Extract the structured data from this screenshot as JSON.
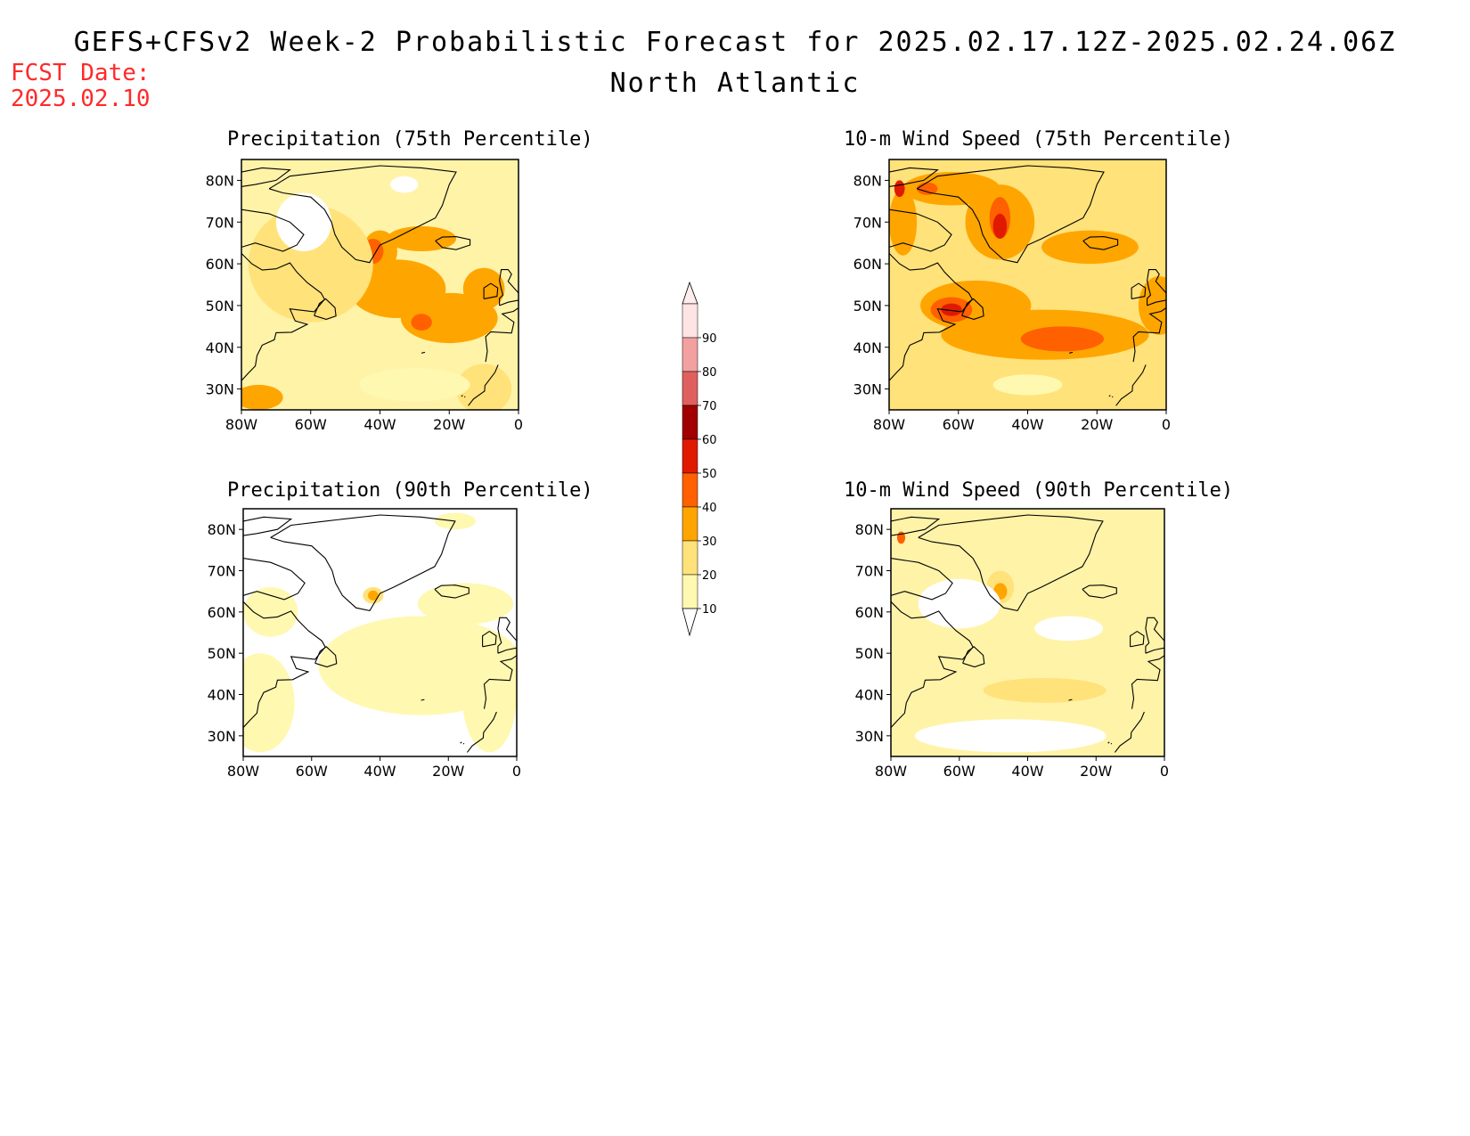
{
  "header": {
    "title": "GEFS+CFSv2 Week-2 Probabilistic Forecast for 2025.02.17.12Z-2025.02.24.06Z",
    "subtitle": "North Atlantic",
    "fcst_label": "FCST Date:",
    "fcst_date": "2025.02.10"
  },
  "axes": {
    "lat_ticks": [
      "80N",
      "70N",
      "60N",
      "50N",
      "40N",
      "30N"
    ],
    "lon_ticks": [
      "80W",
      "60W",
      "40W",
      "20W",
      "0"
    ]
  },
  "colorbar": {
    "labels": [
      "10",
      "20",
      "30",
      "40",
      "50",
      "60",
      "70",
      "80",
      "90"
    ],
    "colors": [
      "#fff8b0",
      "#ffe27a",
      "#ffa500",
      "#ff6000",
      "#e01a00",
      "#a00000",
      "#e06060",
      "#f2a0a0",
      "#ffe4e4"
    ]
  },
  "panels": [
    {
      "title": "Precipitation (75th Percentile)",
      "background": "#fff3a8",
      "blobs": [
        {
          "level": 2,
          "lon": -35,
          "lat": 54,
          "rx": 14,
          "ry": 7
        },
        {
          "level": 2,
          "lon": -20,
          "lat": 47,
          "rx": 14,
          "ry": 6
        },
        {
          "level": 2,
          "lon": -10,
          "lat": 54,
          "rx": 6,
          "ry": 5
        },
        {
          "level": 2,
          "lon": -40,
          "lat": 63,
          "rx": 5,
          "ry": 5
        },
        {
          "level": 2,
          "lon": -28,
          "lat": 66,
          "rx": 10,
          "ry": 3
        },
        {
          "level": 2,
          "lon": -75,
          "lat": 28,
          "rx": 7,
          "ry": 3
        },
        {
          "level": 3,
          "lon": -28,
          "lat": 46,
          "rx": 3,
          "ry": 2
        },
        {
          "level": 3,
          "lon": -42,
          "lat": 63,
          "rx": 3,
          "ry": 3
        },
        {
          "level": 3,
          "lon": -63,
          "lat": 50,
          "rx": 2,
          "ry": 2
        },
        {
          "level": 1,
          "lon": -60,
          "lat": 60,
          "rx": 18,
          "ry": 14
        },
        {
          "level": 1,
          "lon": -10,
          "lat": 30,
          "rx": 8,
          "ry": 6
        },
        {
          "level": 0,
          "lon": -30,
          "lat": 31,
          "rx": 16,
          "ry": 4
        },
        {
          "level": -1,
          "lon": -62,
          "lat": 70,
          "rx": 8,
          "ry": 7
        },
        {
          "level": -1,
          "lon": -33,
          "lat": 79,
          "rx": 4,
          "ry": 2
        }
      ]
    },
    {
      "title": "10-m Wind Speed (75th Percentile)",
      "background": "#ffe27a",
      "blobs": [
        {
          "level": 2,
          "lon": -35,
          "lat": 43,
          "rx": 30,
          "ry": 6
        },
        {
          "level": 2,
          "lon": -55,
          "lat": 50,
          "rx": 16,
          "ry": 6
        },
        {
          "level": 2,
          "lon": -48,
          "lat": 70,
          "rx": 10,
          "ry": 9
        },
        {
          "level": 2,
          "lon": -62,
          "lat": 78,
          "rx": 14,
          "ry": 4
        },
        {
          "level": 2,
          "lon": -22,
          "lat": 64,
          "rx": 14,
          "ry": 4
        },
        {
          "level": 2,
          "lon": -76,
          "lat": 70,
          "rx": 4,
          "ry": 8
        },
        {
          "level": 2,
          "lon": -2,
          "lat": 50,
          "rx": 6,
          "ry": 7
        },
        {
          "level": 3,
          "lon": -30,
          "lat": 42,
          "rx": 12,
          "ry": 3
        },
        {
          "level": 3,
          "lon": -62,
          "lat": 49,
          "rx": 6,
          "ry": 3
        },
        {
          "level": 3,
          "lon": -48,
          "lat": 71,
          "rx": 3,
          "ry": 5
        },
        {
          "level": 3,
          "lon": -69,
          "lat": 78,
          "rx": 3,
          "ry": 1.5
        },
        {
          "level": 4,
          "lon": -48,
          "lat": 69,
          "rx": 2,
          "ry": 3
        },
        {
          "level": 4,
          "lon": -62,
          "lat": 49,
          "rx": 3,
          "ry": 1.5
        },
        {
          "level": 4,
          "lon": -77,
          "lat": 78,
          "rx": 1.5,
          "ry": 2
        },
        {
          "level": 1,
          "lon": -5,
          "lat": 80,
          "rx": 8,
          "ry": 4
        },
        {
          "level": 0,
          "lon": -40,
          "lat": 31,
          "rx": 10,
          "ry": 2.5
        }
      ]
    },
    {
      "title": "Precipitation (90th Percentile)",
      "background": "#ffffff",
      "blobs": [
        {
          "level": 0,
          "lon": -28,
          "lat": 47,
          "rx": 30,
          "ry": 12
        },
        {
          "level": 0,
          "lon": -75,
          "lat": 38,
          "rx": 10,
          "ry": 12
        },
        {
          "level": 0,
          "lon": -72,
          "lat": 60,
          "rx": 8,
          "ry": 6
        },
        {
          "level": 0,
          "lon": -8,
          "lat": 40,
          "rx": 8,
          "ry": 14
        },
        {
          "level": 0,
          "lon": -15,
          "lat": 62,
          "rx": 14,
          "ry": 5
        },
        {
          "level": 0,
          "lon": -18,
          "lat": 82,
          "rx": 6,
          "ry": 2
        },
        {
          "level": 1,
          "lon": -42,
          "lat": 64,
          "rx": 3,
          "ry": 2
        },
        {
          "level": 2,
          "lon": -42,
          "lat": 64,
          "rx": 1.5,
          "ry": 1.2
        }
      ]
    },
    {
      "title": "10-m Wind Speed (90th Percentile)",
      "background": "#fff3a8",
      "blobs": [
        {
          "level": 1,
          "lon": -35,
          "lat": 41,
          "rx": 18,
          "ry": 3
        },
        {
          "level": 1,
          "lon": -48,
          "lat": 66,
          "rx": 4,
          "ry": 4
        },
        {
          "level": 2,
          "lon": -48,
          "lat": 65,
          "rx": 2,
          "ry": 2
        },
        {
          "level": 3,
          "lon": -77,
          "lat": 78,
          "rx": 1.2,
          "ry": 1.5
        },
        {
          "level": -1,
          "lon": -28,
          "lat": 56,
          "rx": 10,
          "ry": 3
        },
        {
          "level": -1,
          "lon": -45,
          "lat": 30,
          "rx": 28,
          "ry": 4
        },
        {
          "level": -1,
          "lon": -60,
          "lat": 62,
          "rx": 12,
          "ry": 6
        }
      ]
    }
  ]
}
